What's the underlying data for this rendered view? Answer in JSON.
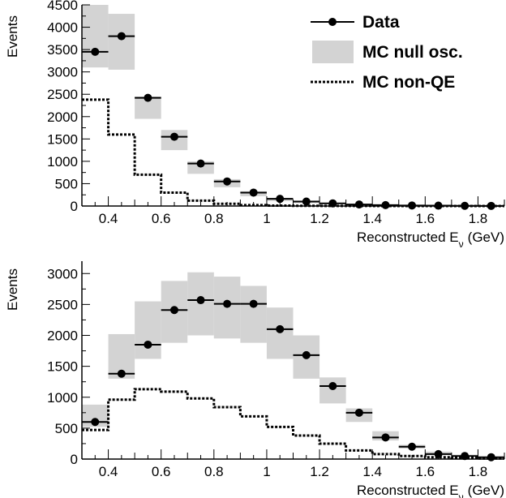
{
  "chart_data": [
    {
      "type": "step-histogram",
      "xlabel": "Reconstructed E",
      "xlabel_sub": "ν",
      "xlabel_unit": "(GeV)",
      "ylabel": "Events",
      "xlim": [
        0.3,
        1.9
      ],
      "ylim": [
        0,
        4500
      ],
      "xticks": [
        0.4,
        0.6,
        0.8,
        1,
        1.2,
        1.4,
        1.6,
        1.8
      ],
      "yticks": [
        0,
        500,
        1000,
        1500,
        2000,
        2500,
        3000,
        3500,
        4000,
        4500
      ],
      "bin_edges": [
        0.3,
        0.4,
        0.5,
        0.6,
        0.7,
        0.8,
        0.9,
        1.0,
        1.1,
        1.2,
        1.3,
        1.4,
        1.5,
        1.6,
        1.7,
        1.8,
        1.9
      ],
      "series": [
        {
          "name": "Data",
          "style": "points",
          "values": [
            3450,
            3800,
            2420,
            1550,
            950,
            550,
            300,
            160,
            100,
            60,
            35,
            20,
            12,
            8,
            5,
            3
          ]
        },
        {
          "name": "MC null osc.",
          "style": "band",
          "low": [
            3100,
            3050,
            1950,
            1250,
            720,
            420,
            220,
            110,
            65,
            40,
            22,
            13,
            8,
            5,
            3,
            2
          ],
          "high": [
            4550,
            4300,
            2450,
            1700,
            1000,
            600,
            330,
            180,
            120,
            70,
            40,
            25,
            15,
            10,
            6,
            4
          ]
        },
        {
          "name": "MC non-QE",
          "style": "dashed-step",
          "values": [
            2380,
            1600,
            700,
            300,
            120,
            50,
            20,
            10,
            5,
            3,
            2,
            1,
            1,
            0,
            0,
            0
          ]
        }
      ]
    },
    {
      "type": "step-histogram",
      "xlabel": "Reconstructed E",
      "xlabel_sub": "ν",
      "xlabel_unit": "(GeV)",
      "ylabel": "Events",
      "xlim": [
        0.3,
        1.9
      ],
      "ylim": [
        0,
        3200
      ],
      "xticks": [
        0.4,
        0.6,
        0.8,
        1,
        1.2,
        1.4,
        1.6,
        1.8
      ],
      "yticks": [
        0,
        500,
        1000,
        1500,
        2000,
        2500,
        3000
      ],
      "bin_edges": [
        0.3,
        0.4,
        0.5,
        0.6,
        0.7,
        0.8,
        0.9,
        1.0,
        1.1,
        1.2,
        1.3,
        1.4,
        1.5,
        1.6,
        1.7,
        1.8,
        1.9
      ],
      "series": [
        {
          "name": "Data",
          "style": "points",
          "values": [
            600,
            1380,
            1850,
            2410,
            2570,
            2510,
            2510,
            2100,
            1680,
            1180,
            750,
            350,
            200,
            80,
            50,
            30
          ]
        },
        {
          "name": "MC null osc.",
          "style": "band",
          "low": [
            520,
            1300,
            1620,
            1880,
            2000,
            1950,
            1880,
            1620,
            1300,
            900,
            600,
            300,
            170,
            70,
            40,
            20
          ],
          "high": [
            880,
            2020,
            2550,
            2880,
            3020,
            2950,
            2800,
            2450,
            2000,
            1320,
            820,
            450,
            230,
            120,
            70,
            40
          ]
        },
        {
          "name": "MC non-QE",
          "style": "dashed-step",
          "values": [
            470,
            960,
            1130,
            1090,
            980,
            840,
            690,
            520,
            380,
            250,
            140,
            80,
            50,
            30,
            20,
            10
          ]
        }
      ]
    }
  ],
  "legend": [
    {
      "label": "Data",
      "marker": "point"
    },
    {
      "label": "MC null osc.",
      "marker": "band"
    },
    {
      "label": "MC non-QE",
      "marker": "dashed"
    }
  ],
  "colors": {
    "band": "#d3d3d3",
    "axis": "#000000",
    "points": "#000000"
  }
}
